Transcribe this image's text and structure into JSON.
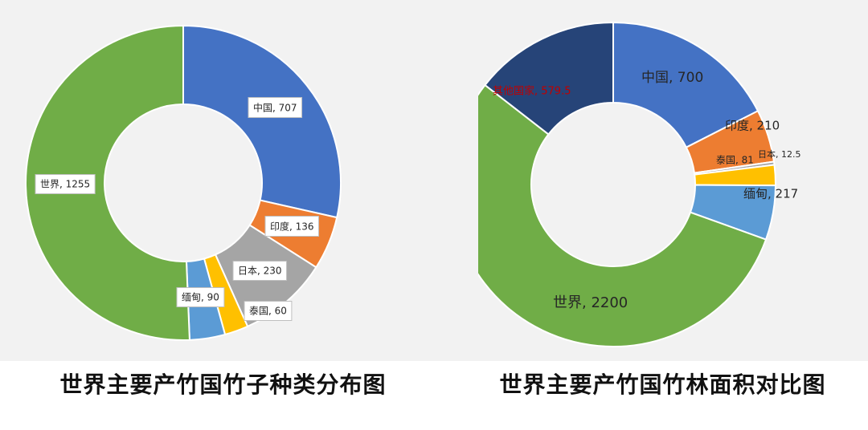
{
  "chart_data": [
    {
      "type": "pie",
      "variant": "donut",
      "title": "世界主要产竹国竹子种类分布图",
      "label_style": "boxed",
      "slices": [
        {
          "label": "中国",
          "value": 707,
          "display": "中国, 707",
          "color": "#4472c4"
        },
        {
          "label": "印度",
          "value": 136,
          "display": "印度, 136",
          "color": "#ed7d31"
        },
        {
          "label": "日本",
          "value": 230,
          "display": "日本, 230",
          "color": "#a5a5a5"
        },
        {
          "label": "泰国",
          "value": 60,
          "display": "泰国, 60",
          "color": "#ffc000"
        },
        {
          "label": "缅甸",
          "value": 90,
          "display": "缅甸, 90",
          "color": "#5b9bd5"
        },
        {
          "label": "世界",
          "value": 1255,
          "display": "世界, 1255",
          "color": "#70ad47"
        }
      ]
    },
    {
      "type": "pie",
      "variant": "donut",
      "title": "世界主要产竹国竹林面积对比图",
      "label_style": "plain",
      "slices": [
        {
          "label": "中国",
          "value": 700,
          "display": "中国, 700",
          "color": "#4472c4"
        },
        {
          "label": "印度",
          "value": 210,
          "display": "印度, 210",
          "color": "#ed7d31"
        },
        {
          "label": "日本",
          "value": 12.5,
          "display": "日本, 12.5",
          "color": "#a5a5a5"
        },
        {
          "label": "泰国",
          "value": 81,
          "display": "泰国, 81",
          "color": "#ffc000"
        },
        {
          "label": "缅甸",
          "value": 217,
          "display": "缅甸, 217",
          "color": "#5b9bd5"
        },
        {
          "label": "世界",
          "value": 2200,
          "display": "世界, 2200",
          "color": "#70ad47"
        },
        {
          "label": "其他国家",
          "value": 579.5,
          "display": "其他国家, 579.5",
          "color": "#264478",
          "label_color": "#c00000"
        }
      ]
    }
  ]
}
